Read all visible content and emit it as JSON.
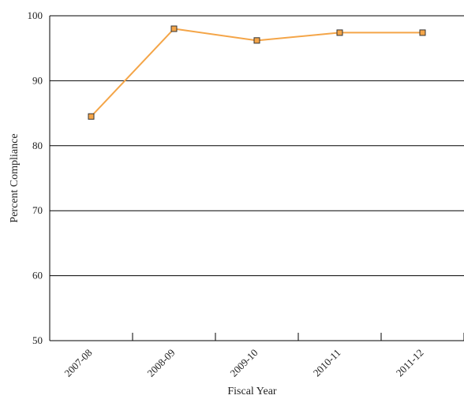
{
  "chart_data": {
    "type": "line",
    "title": "",
    "xlabel": "Fiscal Year",
    "ylabel": "Percent Compliance",
    "categories": [
      "2007-08",
      "2008-09",
      "2009-10",
      "2010-11",
      "2011-12"
    ],
    "series": [
      {
        "values": [
          84.5,
          98.0,
          96.2,
          97.4,
          97.4
        ],
        "color": "#F4A548",
        "marker": "square",
        "marker_fill": "#F4A548",
        "marker_edge": "#333333"
      }
    ],
    "ylim": [
      50,
      100
    ],
    "yticks": [
      50,
      60,
      70,
      80,
      90,
      100
    ],
    "grid": "horizontal",
    "legend": "none"
  }
}
